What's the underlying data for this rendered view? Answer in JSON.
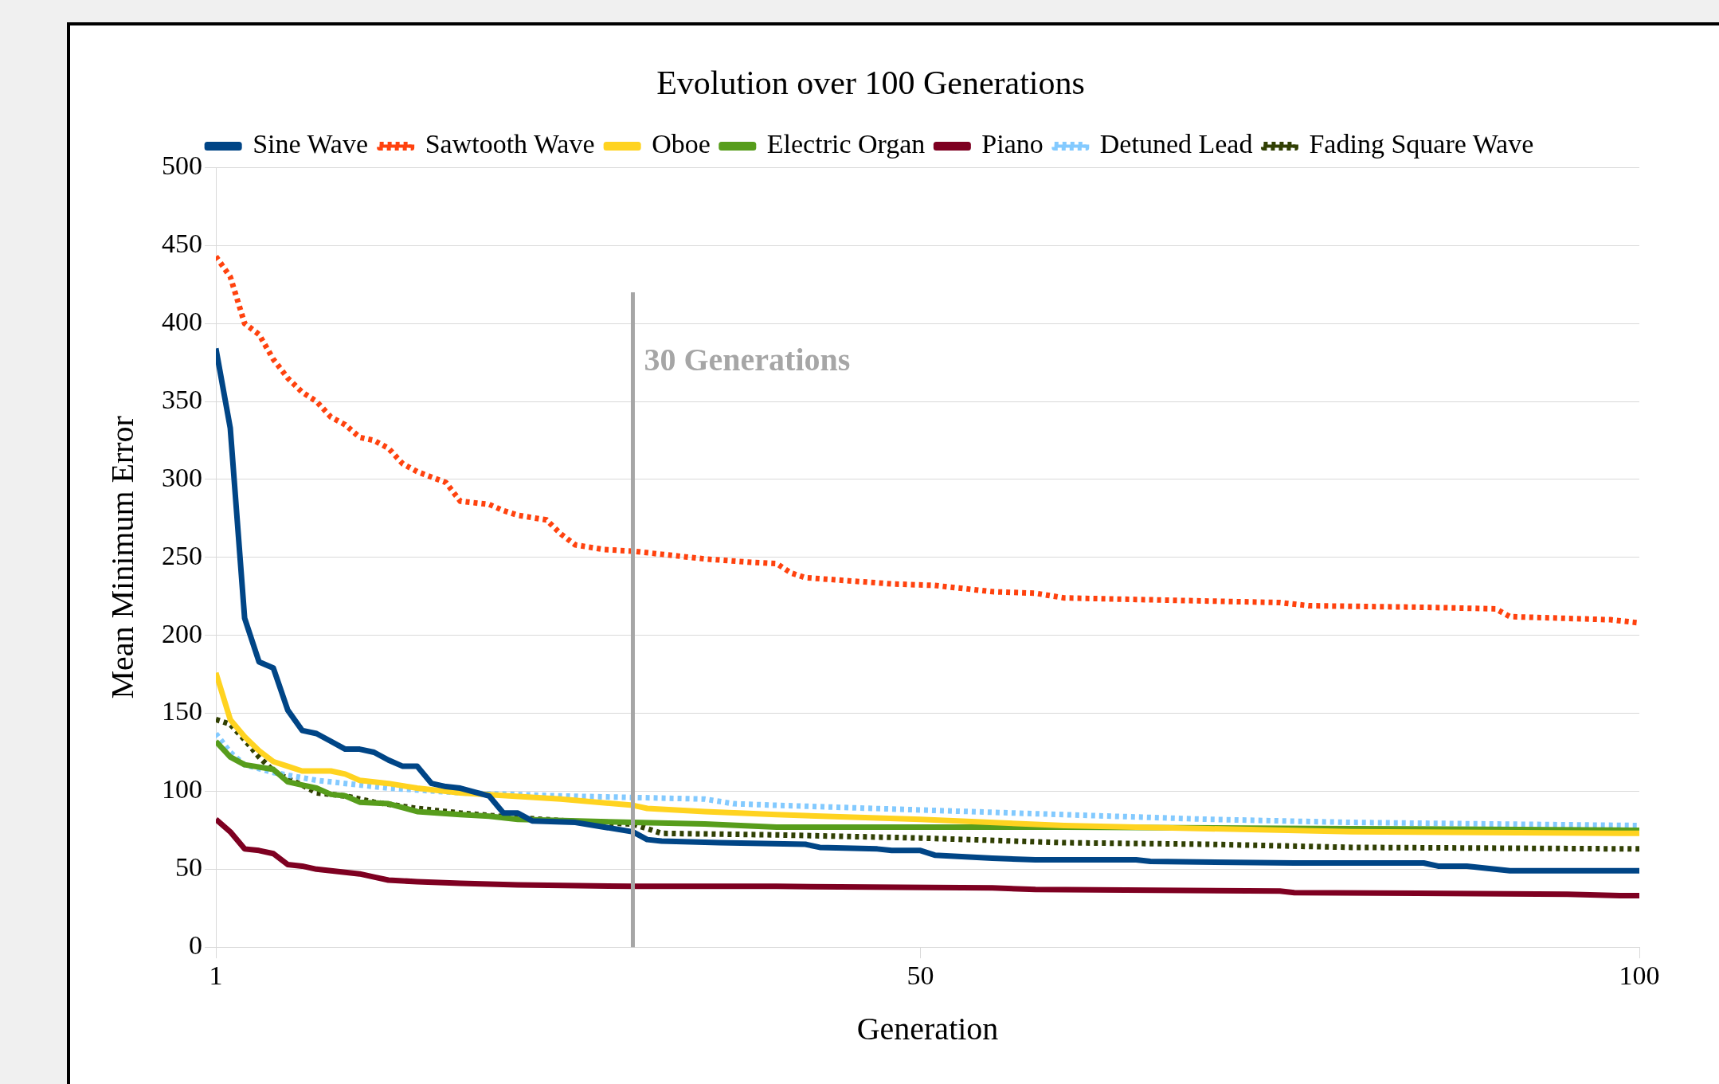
{
  "chart_data": {
    "type": "line",
    "title": "Evolution over 100 Generations",
    "xlabel": "Generation",
    "ylabel": "Mean Minimum Error",
    "xlim": [
      1,
      100
    ],
    "xticks": [
      1,
      50,
      100
    ],
    "ylim": [
      0,
      500
    ],
    "yticks": [
      0,
      50,
      100,
      150,
      200,
      250,
      300,
      350,
      400,
      450,
      500
    ],
    "grid": "y",
    "legend": "top",
    "marker": "none",
    "ref_lines": [
      {
        "axis": "x",
        "value": 30,
        "label": "30 Generations",
        "color": "#a6a6a6"
      }
    ],
    "series": [
      {
        "name": "Sine Wave",
        "color": "#004586",
        "line_style": "solid",
        "x": [
          1,
          2,
          3,
          4,
          5,
          6,
          7,
          8,
          9,
          10,
          11,
          12,
          13,
          14,
          15,
          16,
          17,
          18,
          20,
          21,
          22,
          23,
          26,
          30,
          31,
          32,
          36,
          42,
          43,
          47,
          48,
          50,
          51,
          55,
          58,
          65,
          66,
          76,
          85,
          86,
          88,
          91,
          100
        ],
        "values": [
          384,
          333,
          211,
          183,
          179,
          152,
          139,
          137,
          132,
          127,
          127,
          125,
          120,
          116,
          116,
          105,
          103,
          102,
          97,
          86,
          86,
          81,
          80,
          74,
          69,
          68,
          67,
          66,
          64,
          63,
          62,
          62,
          59,
          57,
          56,
          56,
          55,
          54,
          54,
          52,
          52,
          49,
          49
        ]
      },
      {
        "name": "Sawtooth Wave",
        "color": "#ff420e",
        "line_style": "dotted",
        "x": [
          1,
          2,
          3,
          4,
          5,
          6,
          7,
          8,
          9,
          10,
          11,
          12,
          13,
          14,
          15,
          17,
          18,
          20,
          21,
          22,
          24,
          25,
          26,
          28,
          30,
          32,
          35,
          38,
          40,
          41,
          42,
          45,
          48,
          51,
          53,
          55,
          58,
          60,
          65,
          75,
          77,
          85,
          90,
          91,
          98,
          100
        ],
        "values": [
          443,
          430,
          400,
          393,
          377,
          365,
          356,
          350,
          340,
          335,
          327,
          325,
          320,
          310,
          305,
          298,
          286,
          284,
          280,
          277,
          274,
          265,
          258,
          255,
          254,
          252,
          249,
          247,
          246,
          240,
          237,
          235,
          233,
          232,
          230,
          228,
          227,
          224,
          223,
          221,
          219,
          218,
          217,
          212,
          210,
          208
        ]
      },
      {
        "name": "Oboe",
        "color": "#ffd320",
        "line_style": "solid",
        "x": [
          1,
          2,
          3,
          4,
          5,
          6,
          7,
          9,
          10,
          11,
          13,
          15,
          18,
          25,
          30,
          31,
          35,
          40,
          50,
          60,
          70,
          80,
          100
        ],
        "values": [
          176,
          146,
          135,
          126,
          119,
          116,
          113,
          113,
          111,
          107,
          105,
          102,
          99,
          95,
          91,
          89,
          87,
          85,
          82,
          78,
          76,
          74,
          73
        ]
      },
      {
        "name": "Electric Organ",
        "color": "#579d1c",
        "line_style": "solid",
        "x": [
          1,
          2,
          3,
          5,
          6,
          7,
          8,
          9,
          10,
          11,
          13,
          15,
          18,
          20,
          22,
          30,
          35,
          40,
          60,
          80,
          100
        ],
        "values": [
          132,
          122,
          117,
          114,
          106,
          104,
          102,
          98,
          97,
          93,
          92,
          87,
          85,
          84,
          82,
          80,
          79,
          77,
          77,
          76,
          75
        ]
      },
      {
        "name": "Piano",
        "color": "#7e0021",
        "line_style": "solid",
        "x": [
          1,
          2,
          3,
          4,
          5,
          6,
          7,
          8,
          10,
          11,
          12,
          13,
          15,
          18,
          22,
          30,
          40,
          55,
          58,
          75,
          76,
          95,
          99,
          100
        ],
        "values": [
          82,
          74,
          63,
          62,
          60,
          53,
          52,
          50,
          48,
          47,
          45,
          43,
          42,
          41,
          40,
          39,
          39,
          38,
          37,
          36,
          35,
          34,
          33,
          33
        ]
      },
      {
        "name": "Detuned Lead",
        "color": "#83caff",
        "line_style": "dotted",
        "x": [
          1,
          2,
          3,
          5,
          8,
          10,
          13,
          18,
          25,
          30,
          35,
          37,
          40,
          50,
          60,
          70,
          80,
          90,
          100
        ],
        "values": [
          137,
          125,
          117,
          112,
          107,
          105,
          102,
          99,
          97,
          96,
          95,
          92,
          91,
          88,
          85,
          82,
          80,
          79,
          78
        ]
      },
      {
        "name": "Fading Square Wave",
        "color": "#314004",
        "line_style": "dotted",
        "x": [
          1,
          2,
          3,
          4,
          5,
          6,
          7,
          8,
          10,
          12,
          15,
          18,
          22,
          27,
          30,
          31,
          32,
          40,
          50,
          60,
          70,
          80,
          100
        ],
        "values": [
          146,
          143,
          133,
          122,
          113,
          108,
          104,
          99,
          97,
          93,
          89,
          86,
          83,
          80,
          79,
          76,
          73,
          72,
          70,
          67,
          66,
          64,
          63
        ]
      }
    ]
  }
}
